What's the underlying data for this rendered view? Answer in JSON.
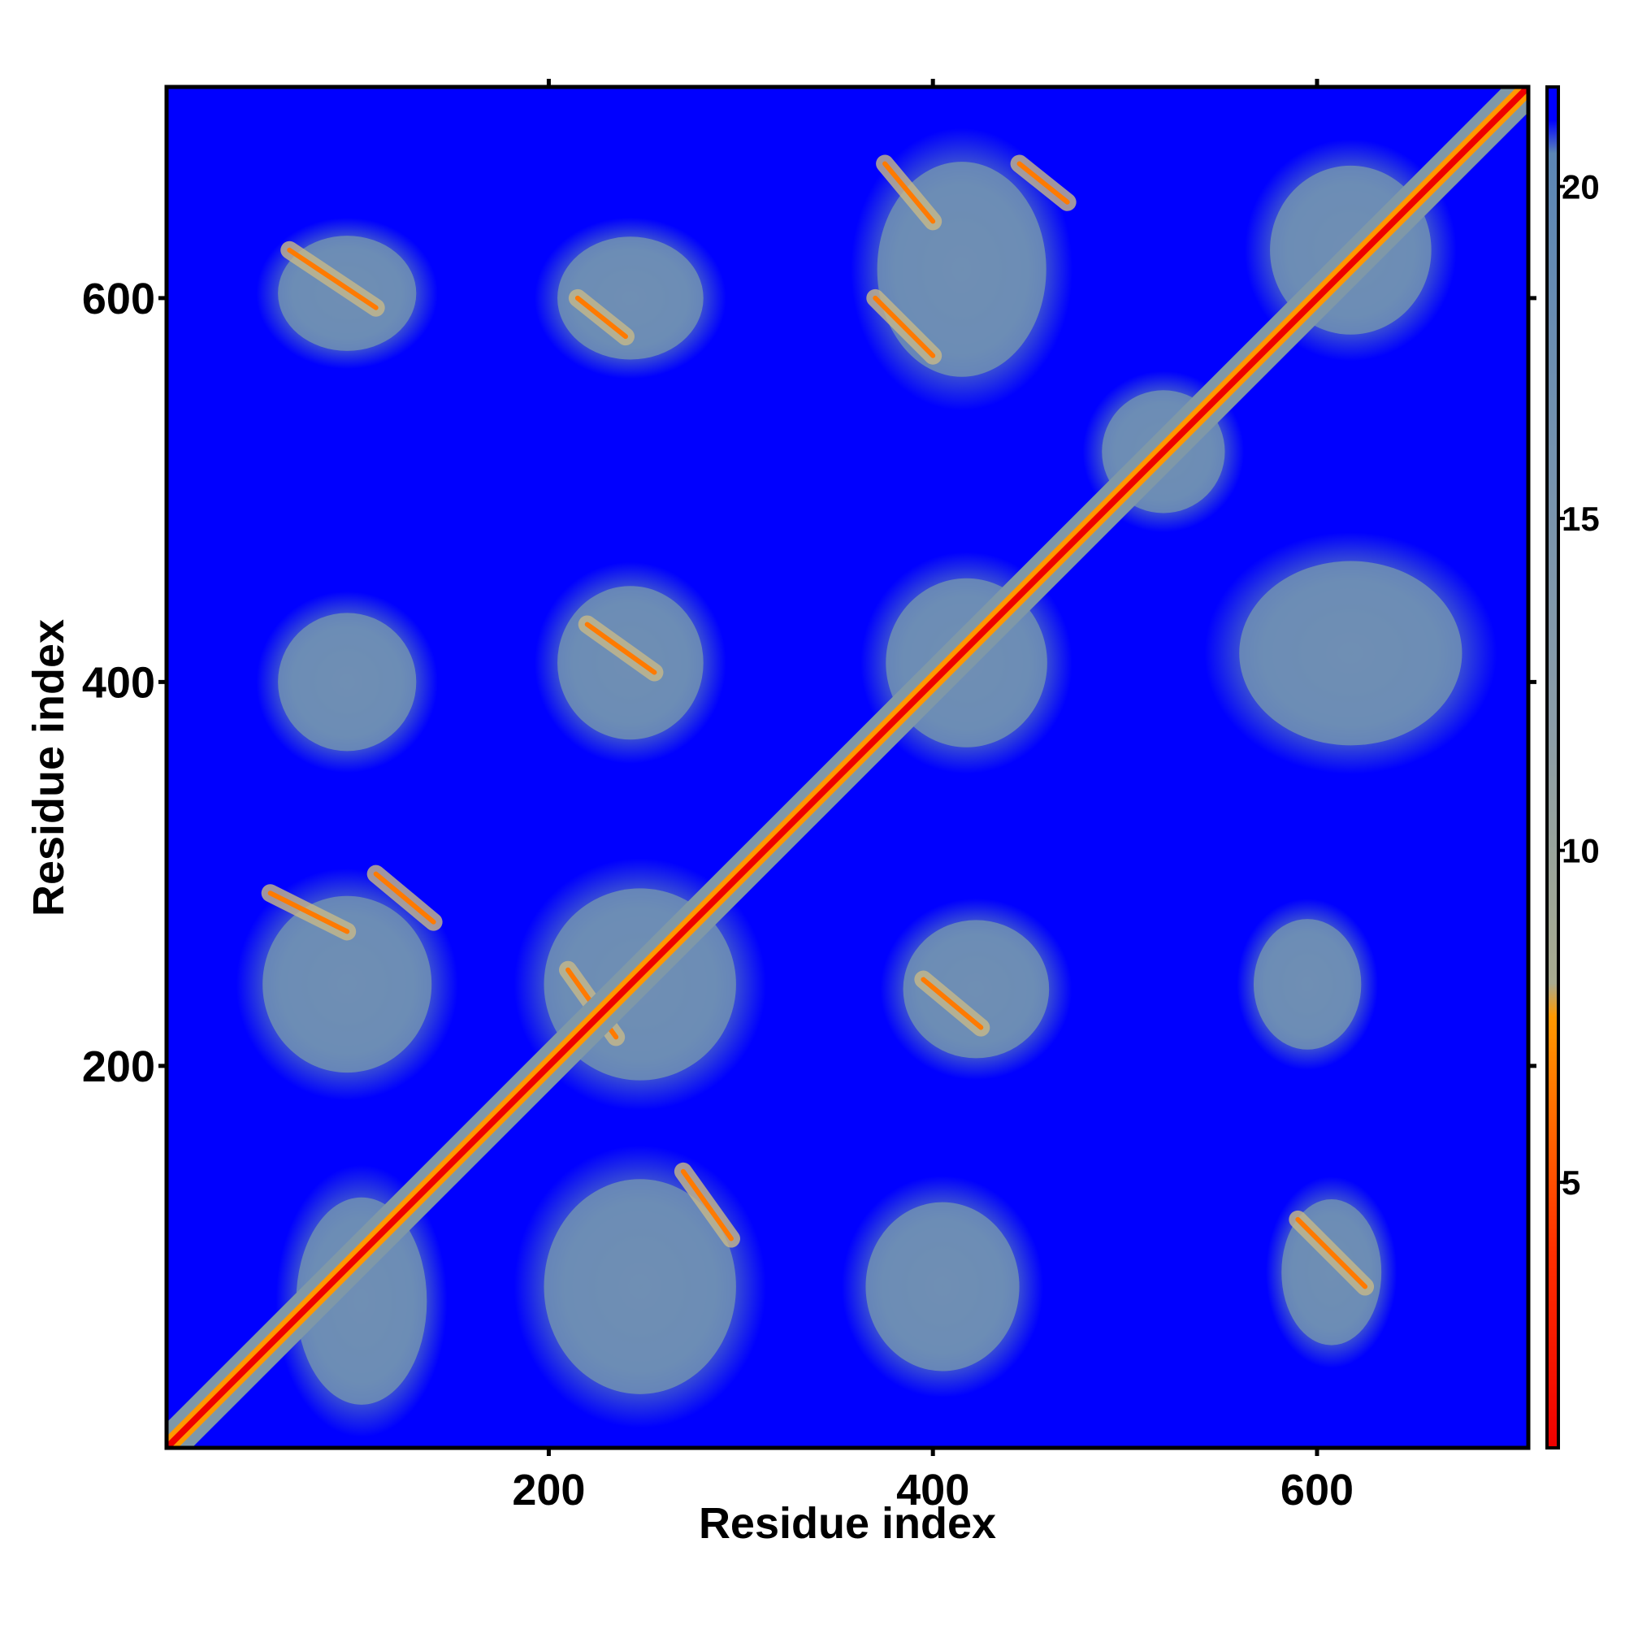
{
  "chart_data": {
    "type": "heatmap",
    "description_of_values": "pairwise residue distance map (color = distance)",
    "xlabel": "Residue index",
    "ylabel": "Residue index",
    "xlim": [
      1,
      710
    ],
    "ylim": [
      1,
      710
    ],
    "x_ticks": [
      200,
      400,
      600
    ],
    "y_ticks": [
      200,
      400,
      600
    ],
    "x_tick_labels": [
      "200",
      "400",
      "600"
    ],
    "y_tick_labels": [
      "200",
      "400",
      "600"
    ],
    "colorbar": {
      "range": [
        1,
        21.5
      ],
      "ticks": [
        5,
        10,
        15,
        20
      ],
      "tick_labels": [
        "5",
        "10",
        "15",
        "20"
      ],
      "stops": [
        {
          "value": 1,
          "color": "#ee0000"
        },
        {
          "value": 4,
          "color": "#ff3000"
        },
        {
          "value": 7.5,
          "color": "#ff9900"
        },
        {
          "value": 8,
          "color": "#a8ab8f"
        },
        {
          "value": 12,
          "color": "#8a9ca8"
        },
        {
          "value": 20.5,
          "color": "#5b86b5"
        },
        {
          "value": 21,
          "color": "#0000ff"
        },
        {
          "value": 21.5,
          "color": "#0000ff"
        }
      ]
    },
    "background_value_color": "#0000ff",
    "diagonal_color": "#ee0000",
    "contact_blocks": [
      {
        "x": [
          60,
          145
        ],
        "y": [
          10,
          145
        ]
      },
      {
        "x": [
          185,
          310
        ],
        "y": [
          15,
          155
        ]
      },
      {
        "x": [
          355,
          455
        ],
        "y": [
          30,
          140
        ]
      },
      {
        "x": [
          575,
          640
        ],
        "y": [
          45,
          140
        ]
      },
      {
        "x": [
          40,
          150
        ],
        "y": [
          185,
          300
        ]
      },
      {
        "x": [
          185,
          310
        ],
        "y": [
          180,
          305
        ]
      },
      {
        "x": [
          375,
          470
        ],
        "y": [
          195,
          285
        ]
      },
      {
        "x": [
          560,
          630
        ],
        "y": [
          200,
          285
        ]
      },
      {
        "x": [
          50,
          140
        ],
        "y": [
          355,
          445
        ]
      },
      {
        "x": [
          195,
          290
        ],
        "y": [
          360,
          460
        ]
      },
      {
        "x": [
          365,
          470
        ],
        "y": [
          355,
          465
        ]
      },
      {
        "x": [
          545,
          690
        ],
        "y": [
          355,
          475
        ]
      },
      {
        "x": [
          480,
          560
        ],
        "y": [
          480,
          560
        ]
      },
      {
        "x": [
          50,
          140
        ],
        "y": [
          565,
          640
        ]
      },
      {
        "x": [
          195,
          290
        ],
        "y": [
          560,
          640
        ]
      },
      {
        "x": [
          360,
          470
        ],
        "y": [
          545,
          685
        ]
      },
      {
        "x": [
          565,
          670
        ],
        "y": [
          570,
          680
        ]
      }
    ],
    "anti_diagonal_streaks": [
      {
        "x": [
          65,
          110
        ],
        "y": [
          625,
          595
        ]
      },
      {
        "x": [
          215,
          240
        ],
        "y": [
          600,
          580
        ]
      },
      {
        "x": [
          375,
          400
        ],
        "y": [
          670,
          640
        ]
      },
      {
        "x": [
          445,
          470
        ],
        "y": [
          670,
          650
        ]
      },
      {
        "x": [
          370,
          400
        ],
        "y": [
          600,
          570
        ]
      },
      {
        "x": [
          220,
          255
        ],
        "y": [
          430,
          405
        ]
      },
      {
        "x": [
          55,
          95
        ],
        "y": [
          290,
          270
        ]
      },
      {
        "x": [
          110,
          140
        ],
        "y": [
          300,
          275
        ]
      },
      {
        "x": [
          270,
          295
        ],
        "y": [
          145,
          110
        ]
      },
      {
        "x": [
          395,
          425
        ],
        "y": [
          245,
          220
        ]
      },
      {
        "x": [
          590,
          625
        ],
        "y": [
          120,
          85
        ]
      },
      {
        "x": [
          210,
          235
        ],
        "y": [
          250,
          215
        ]
      }
    ]
  }
}
